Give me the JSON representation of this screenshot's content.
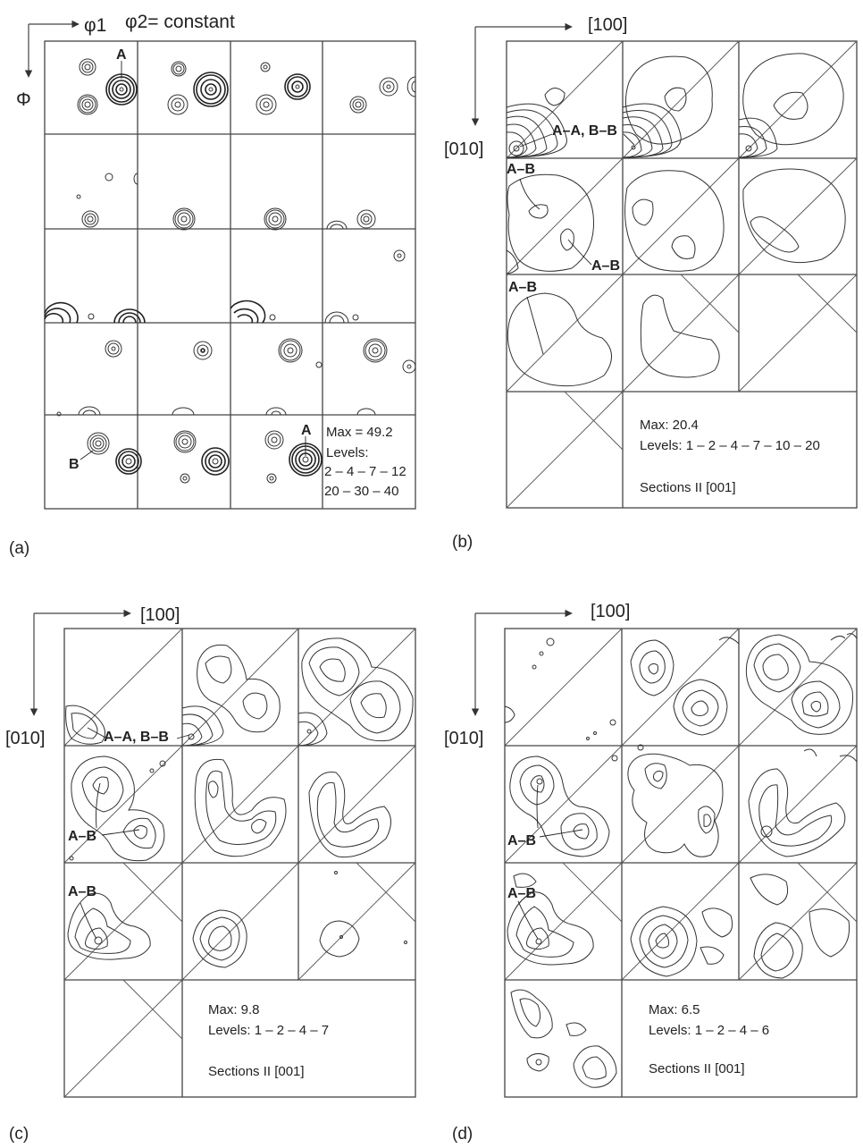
{
  "panel_a": {
    "letter": "(a)",
    "axis_phi1": "φ1",
    "axis_phi2": "φ2= constant",
    "axis_Phi": "Φ",
    "label_A_top": "A",
    "label_A_bottom": "A",
    "label_B": "B",
    "max": "Max = 49.2",
    "levels_title": "Levels:",
    "levels_line1": "2 – 4 – 7 – 12",
    "levels_line2": "20 – 30 – 40"
  },
  "panel_b": {
    "letter": "(b)",
    "axis_x": "[100]",
    "axis_y": "[010]",
    "label_AA_BB": "A–A, B–B",
    "label_AB_1": "A–B",
    "label_AB_2": "A–B",
    "label_AB_3": "A–B",
    "max": "Max: 20.4",
    "levels": "Levels: 1 – 2 – 4 – 7 – 10 – 20",
    "sections": "Sections II [001]"
  },
  "panel_c": {
    "letter": "(c)",
    "axis_x": "[100]",
    "axis_y": "[010]",
    "label_AA_BB": "A–A, B–B",
    "label_AB_1": "A–B",
    "label_AB_2": "A–B",
    "max": "Max: 9.8",
    "levels": "Levels: 1 – 2 – 4 – 7",
    "sections": "Sections II [001]"
  },
  "panel_d": {
    "letter": "(d)",
    "axis_x": "[100]",
    "axis_y": "[010]",
    "label_AB_1": "A–B",
    "label_AB_2": "A–B",
    "max": "Max: 6.5",
    "levels": "Levels: 1 – 2 – 4 – 6",
    "sections": "Sections II [001]"
  }
}
